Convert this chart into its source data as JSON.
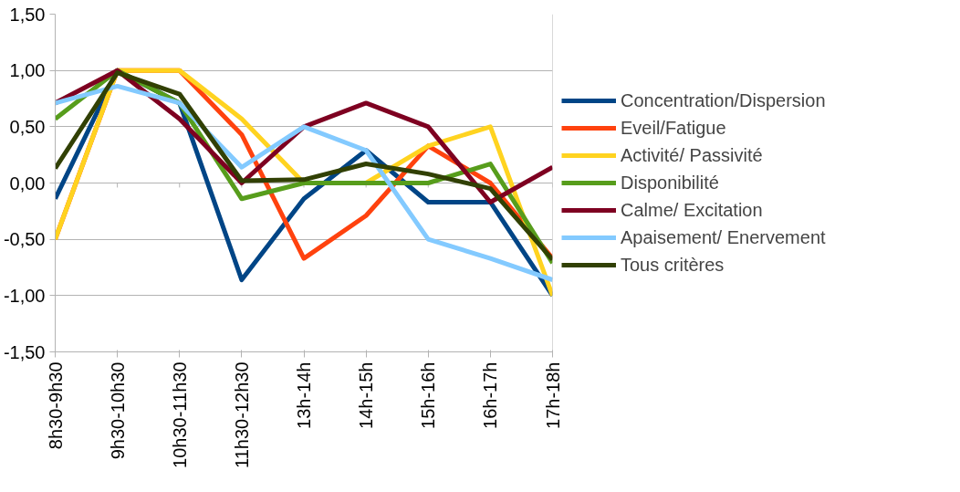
{
  "chart_data": {
    "type": "line",
    "categories": [
      "8h30-9h30",
      "9h30-10h30",
      "10h30-11h30",
      "11h30-12h30",
      "13h-14h",
      "14h-15h",
      "15h-16h",
      "16h-17h",
      "17h-18h"
    ],
    "series": [
      {
        "name": "Concentration/Dispersion",
        "color": "#004586",
        "values": [
          -0.14,
          1.0,
          0.71,
          -0.86,
          -0.14,
          0.29,
          -0.17,
          -0.17,
          -1.0
        ]
      },
      {
        "name": "Eveil/Fatigue",
        "color": "#ff420e",
        "values": [
          -0.5,
          1.0,
          1.0,
          0.43,
          -0.67,
          -0.29,
          0.33,
          0.0,
          -0.67
        ]
      },
      {
        "name": "Activité/ Passivité",
        "color": "#ffd320",
        "values": [
          -0.5,
          1.0,
          1.0,
          0.57,
          0.0,
          0.0,
          0.33,
          0.5,
          -1.0
        ]
      },
      {
        "name": "Disponibilité",
        "color": "#579d1c",
        "values": [
          0.57,
          1.0,
          0.71,
          -0.14,
          0.0,
          0.0,
          0.0,
          0.17,
          -0.71
        ]
      },
      {
        "name": "Calme/ Excitation",
        "color": "#7e0021",
        "values": [
          0.71,
          1.0,
          0.57,
          0.0,
          0.5,
          0.71,
          0.5,
          -0.17,
          0.14
        ]
      },
      {
        "name": "Apaisement/ Enervement",
        "color": "#83caff",
        "values": [
          0.71,
          0.86,
          0.71,
          0.14,
          0.5,
          0.29,
          -0.5,
          -0.67,
          -0.86
        ]
      },
      {
        "name": "Tous critères",
        "color": "#314004",
        "values": [
          0.13,
          0.98,
          0.79,
          0.02,
          0.03,
          0.17,
          0.08,
          -0.05,
          -0.68
        ]
      }
    ],
    "ylim": [
      -1.5,
      1.5
    ],
    "yticks": [
      {
        "value": -1.5,
        "label": "-1,50"
      },
      {
        "value": -1.0,
        "label": "-1,00"
      },
      {
        "value": -0.5,
        "label": "-0,50"
      },
      {
        "value": 0,
        "label": "0,00"
      },
      {
        "value": 0.5,
        "label": "0,50"
      },
      {
        "value": 1.0,
        "label": "1,00"
      },
      {
        "value": 1.5,
        "label": "1,50"
      }
    ],
    "grid": "y",
    "legend": "right",
    "marker": "none",
    "line_style": "solid"
  }
}
